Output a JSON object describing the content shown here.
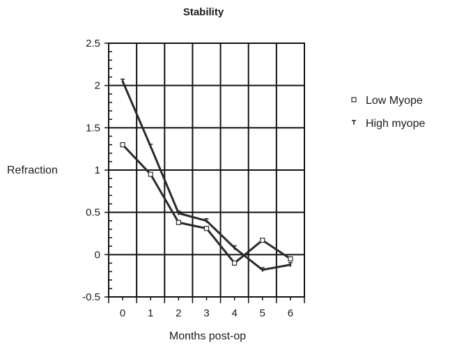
{
  "chart_data": {
    "type": "line",
    "title": "Stability",
    "xlabel": "Months post-op",
    "ylabel": "Refraction",
    "x": [
      0,
      1,
      2,
      3,
      4,
      5,
      6
    ],
    "x_tick_labels": [
      "0",
      "1",
      "2",
      "3",
      "4",
      "5",
      "6"
    ],
    "y_tick_labels": [
      "-0.5",
      "0",
      "0.5",
      "1",
      "1.5",
      "2",
      "2.5"
    ],
    "y_ticks": [
      -0.5,
      0,
      0.5,
      1,
      1.5,
      2,
      2.5
    ],
    "xlim": [
      -0.5,
      6.5
    ],
    "ylim": [
      -0.5,
      2.5
    ],
    "grid": true,
    "legend_position": "right",
    "series": [
      {
        "name": "Low Myope",
        "marker": "square",
        "values": [
          1.3,
          0.95,
          0.38,
          0.31,
          -0.1,
          0.17,
          -0.05
        ]
      },
      {
        "name": "High myope",
        "marker": "tee",
        "values": [
          2.05,
          1.28,
          0.49,
          0.4,
          0.08,
          -0.18,
          -0.12
        ]
      }
    ]
  }
}
